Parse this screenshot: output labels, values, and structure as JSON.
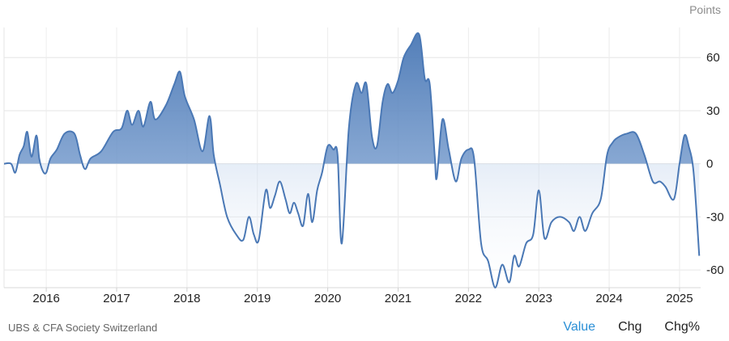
{
  "chart_data": {
    "type": "area",
    "ylabel": "Points",
    "ylim": [
      -70,
      77
    ],
    "xlim": [
      2015.4,
      2025.3
    ],
    "y_ticks": [
      60,
      30,
      0,
      -30,
      -60
    ],
    "x_ticks": [
      2016,
      2017,
      2018,
      2019,
      2020,
      2021,
      2022,
      2023,
      2024,
      2025
    ],
    "grid": true,
    "series": [
      {
        "color": "#4a78b5",
        "points": [
          [
            2015.4,
            0
          ],
          [
            2015.5,
            0
          ],
          [
            2015.56,
            -5
          ],
          [
            2015.62,
            5
          ],
          [
            2015.68,
            10
          ],
          [
            2015.73,
            18
          ],
          [
            2015.79,
            4
          ],
          [
            2015.86,
            16
          ],
          [
            2015.9,
            3
          ],
          [
            2015.95,
            -4
          ],
          [
            2016.0,
            -5
          ],
          [
            2016.06,
            3
          ],
          [
            2016.15,
            8
          ],
          [
            2016.26,
            17
          ],
          [
            2016.4,
            17
          ],
          [
            2016.48,
            5
          ],
          [
            2016.55,
            -3
          ],
          [
            2016.63,
            3
          ],
          [
            2016.78,
            7
          ],
          [
            2016.95,
            18
          ],
          [
            2017.07,
            20
          ],
          [
            2017.15,
            30
          ],
          [
            2017.22,
            22
          ],
          [
            2017.31,
            30
          ],
          [
            2017.38,
            21
          ],
          [
            2017.48,
            35
          ],
          [
            2017.55,
            25
          ],
          [
            2017.7,
            33
          ],
          [
            2017.82,
            45
          ],
          [
            2017.9,
            52
          ],
          [
            2017.97,
            38
          ],
          [
            2018.1,
            25
          ],
          [
            2018.22,
            7
          ],
          [
            2018.32,
            27
          ],
          [
            2018.38,
            5
          ],
          [
            2018.47,
            -12
          ],
          [
            2018.57,
            -30
          ],
          [
            2018.7,
            -40
          ],
          [
            2018.8,
            -43
          ],
          [
            2018.88,
            -30
          ],
          [
            2018.95,
            -40
          ],
          [
            2019.02,
            -43
          ],
          [
            2019.12,
            -15
          ],
          [
            2019.18,
            -25
          ],
          [
            2019.25,
            -18
          ],
          [
            2019.32,
            -10
          ],
          [
            2019.4,
            -20
          ],
          [
            2019.46,
            -28
          ],
          [
            2019.52,
            -22
          ],
          [
            2019.58,
            -28
          ],
          [
            2019.65,
            -35
          ],
          [
            2019.72,
            -17
          ],
          [
            2019.78,
            -33
          ],
          [
            2019.85,
            -15
          ],
          [
            2019.92,
            -5
          ],
          [
            2020.0,
            10
          ],
          [
            2020.08,
            8
          ],
          [
            2020.14,
            5
          ],
          [
            2020.2,
            -45
          ],
          [
            2020.3,
            20
          ],
          [
            2020.4,
            45
          ],
          [
            2020.48,
            40
          ],
          [
            2020.55,
            45
          ],
          [
            2020.63,
            15
          ],
          [
            2020.7,
            10
          ],
          [
            2020.78,
            35
          ],
          [
            2020.85,
            45
          ],
          [
            2020.92,
            40
          ],
          [
            2021.0,
            47
          ],
          [
            2021.08,
            60
          ],
          [
            2021.18,
            67
          ],
          [
            2021.3,
            73
          ],
          [
            2021.38,
            48
          ],
          [
            2021.45,
            45
          ],
          [
            2021.52,
            5
          ],
          [
            2021.55,
            -8
          ],
          [
            2021.63,
            25
          ],
          [
            2021.72,
            8
          ],
          [
            2021.82,
            -10
          ],
          [
            2021.9,
            3
          ],
          [
            2022.0,
            8
          ],
          [
            2022.08,
            3
          ],
          [
            2022.18,
            -45
          ],
          [
            2022.28,
            -55
          ],
          [
            2022.38,
            -70
          ],
          [
            2022.48,
            -57
          ],
          [
            2022.58,
            -67
          ],
          [
            2022.65,
            -52
          ],
          [
            2022.72,
            -58
          ],
          [
            2022.82,
            -45
          ],
          [
            2022.92,
            -40
          ],
          [
            2023.0,
            -15
          ],
          [
            2023.08,
            -42
          ],
          [
            2023.18,
            -33
          ],
          [
            2023.3,
            -30
          ],
          [
            2023.43,
            -33
          ],
          [
            2023.5,
            -38
          ],
          [
            2023.58,
            -30
          ],
          [
            2023.66,
            -38
          ],
          [
            2023.76,
            -28
          ],
          [
            2023.88,
            -20
          ],
          [
            2023.97,
            5
          ],
          [
            2024.05,
            12
          ],
          [
            2024.13,
            15
          ],
          [
            2024.25,
            17
          ],
          [
            2024.38,
            17
          ],
          [
            2024.5,
            5
          ],
          [
            2024.62,
            -10
          ],
          [
            2024.72,
            -10
          ],
          [
            2024.8,
            -13
          ],
          [
            2024.92,
            -20
          ],
          [
            2025.0,
            0
          ],
          [
            2025.07,
            16
          ],
          [
            2025.13,
            10
          ],
          [
            2025.2,
            -5
          ],
          [
            2025.28,
            -52
          ]
        ]
      }
    ]
  },
  "footer": {
    "source": "UBS & CFA Society Switzerland",
    "tabs": [
      "Value",
      "Chg",
      "Chg%"
    ]
  }
}
